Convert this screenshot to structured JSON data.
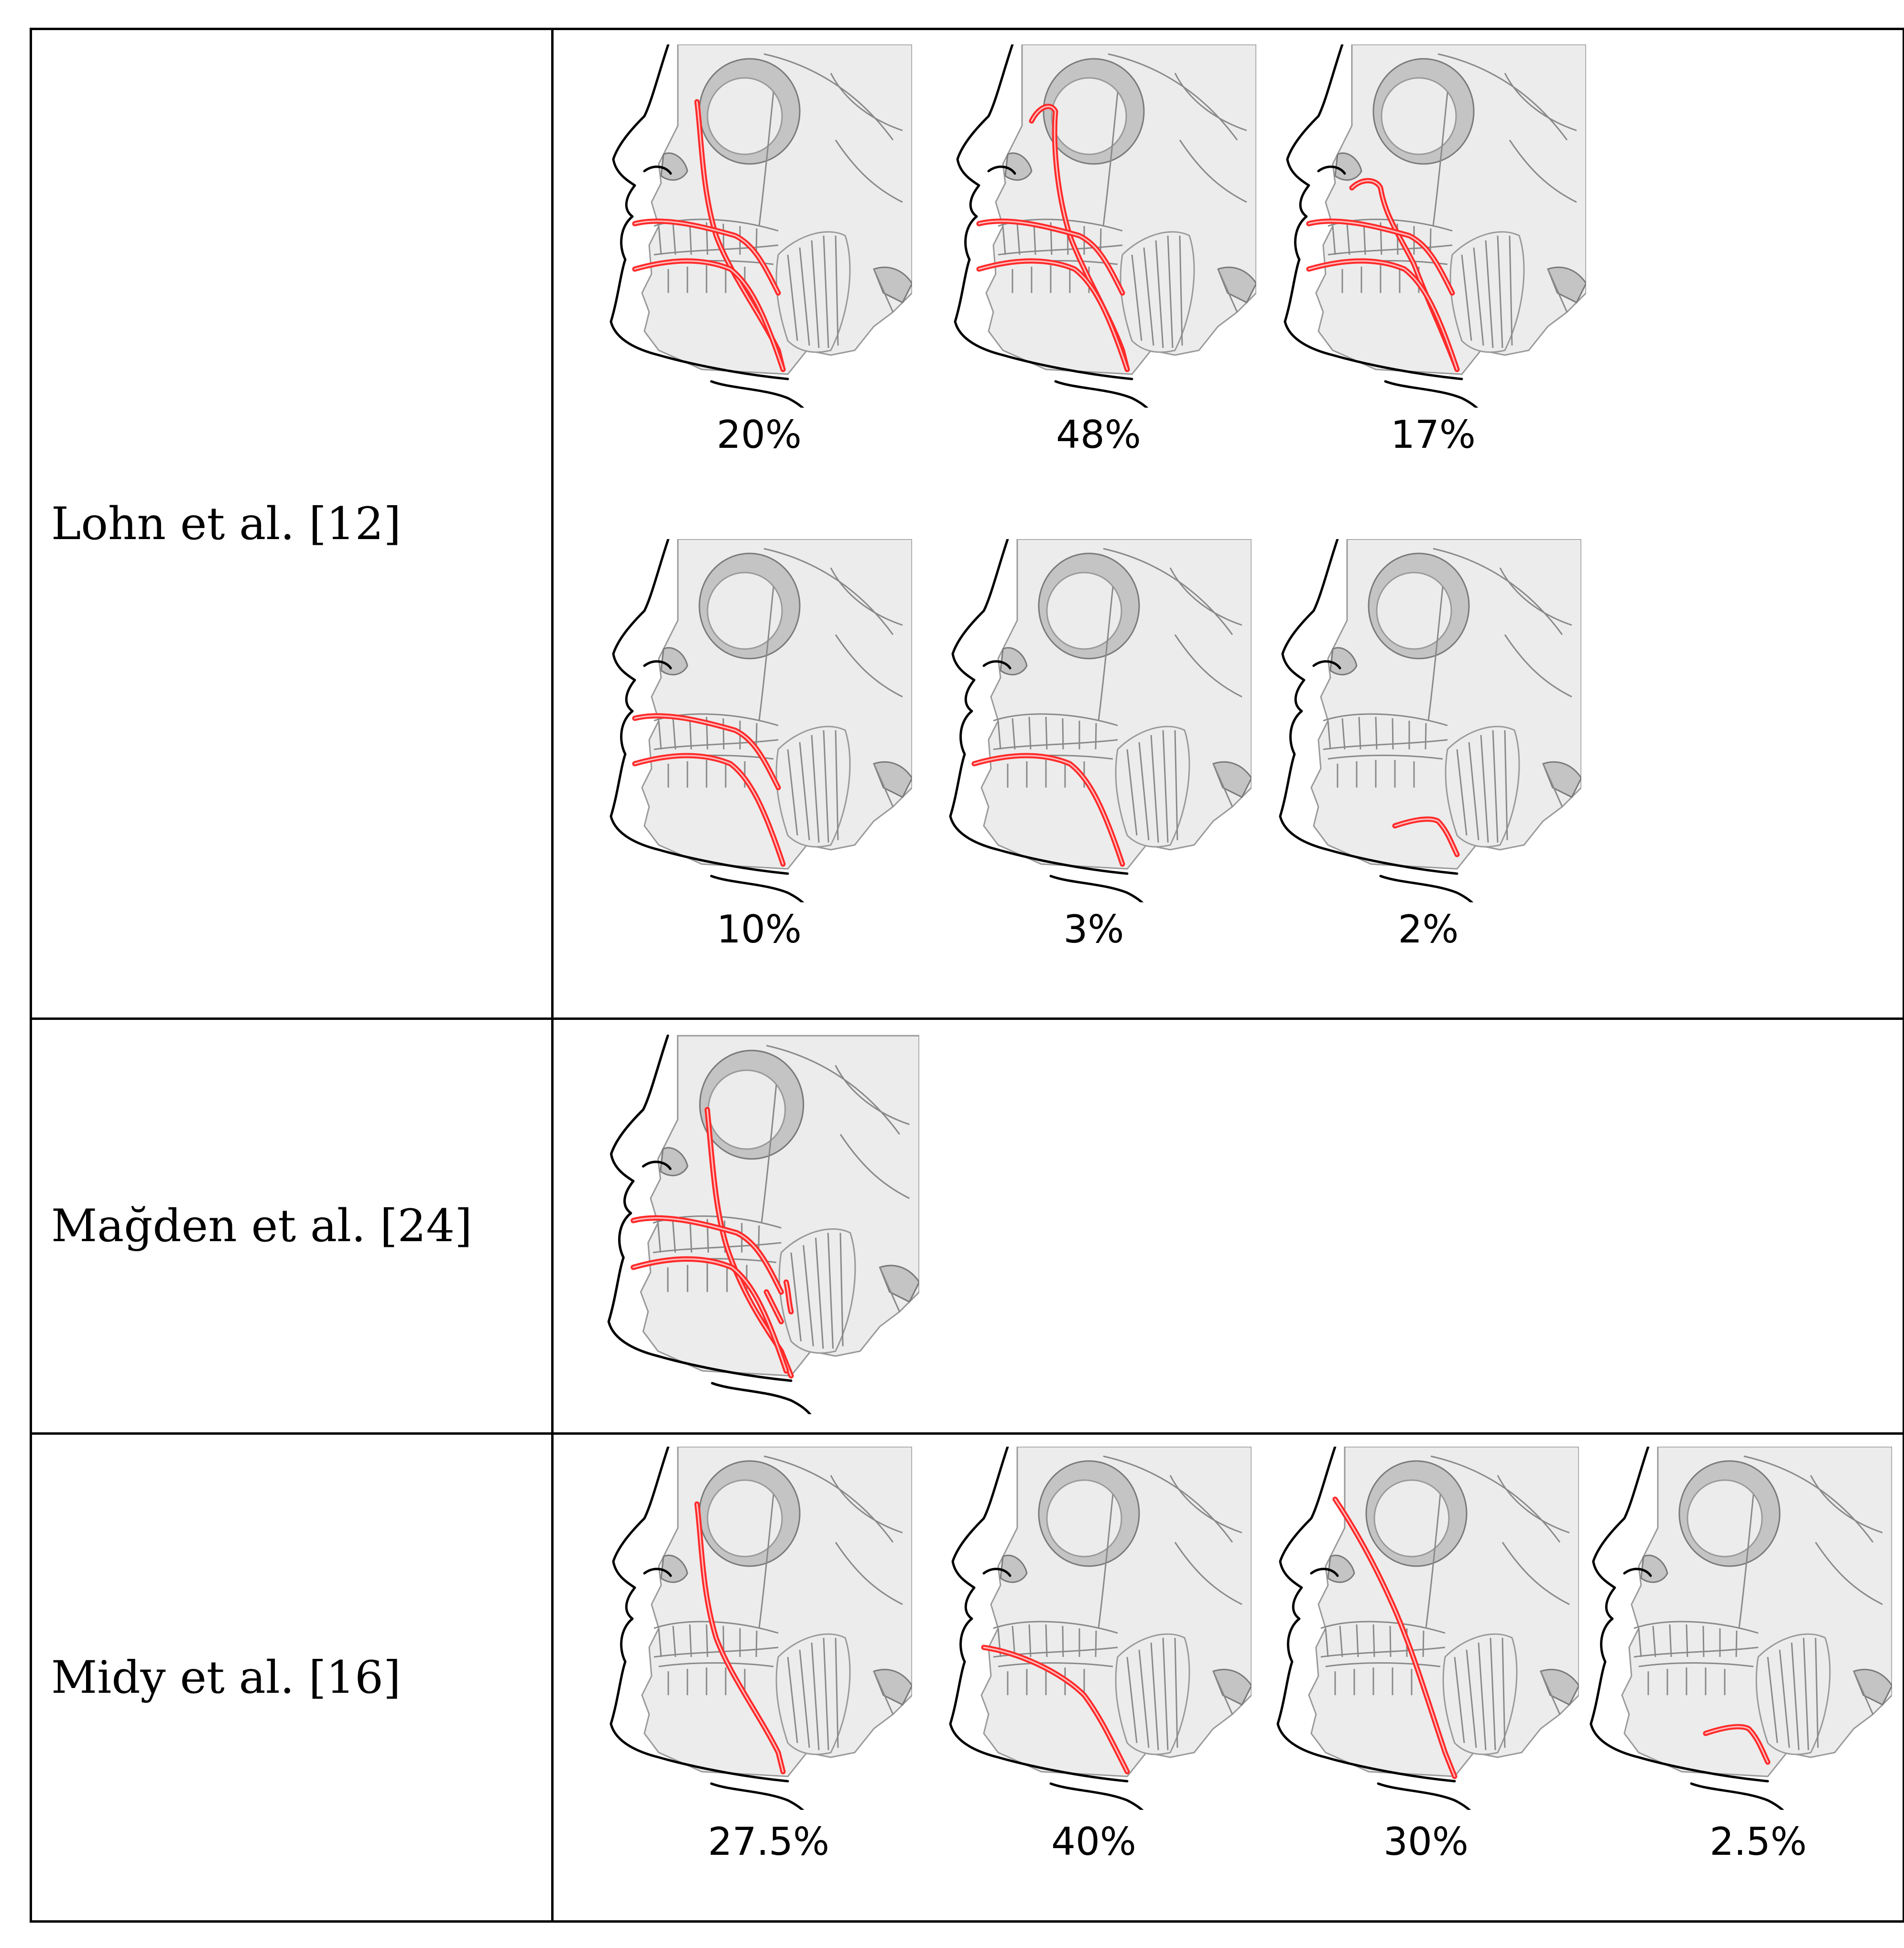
{
  "rows": [
    {
      "label": "Lohn et al. [12]",
      "panels": [
        {
          "percent": "20%",
          "branches": [
            "angular",
            "superior-labial",
            "inferior-labial"
          ]
        },
        {
          "percent": "48%",
          "branches": [
            "angular-lateral",
            "superior-labial",
            "inferior-labial"
          ]
        },
        {
          "percent": "17%",
          "branches": [
            "lateral-nasal",
            "superior-labial",
            "inferior-labial"
          ]
        },
        {
          "percent": "10%",
          "branches": [
            "superior-labial",
            "inferior-labial"
          ]
        },
        {
          "percent": "3%",
          "branches": [
            "inferior-labial"
          ]
        },
        {
          "percent": "2%",
          "branches": [
            "short-trunk"
          ]
        }
      ]
    },
    {
      "label": "Mağden et al. [24]",
      "panels": [
        {
          "percent": "",
          "branches": [
            "angular-double",
            "superior-labial",
            "inferior-labial",
            "masseteric"
          ]
        }
      ]
    },
    {
      "label": "Midy et al. [16]",
      "panels": [
        {
          "percent": "27.5%",
          "branches": [
            "angular"
          ]
        },
        {
          "percent": "40%",
          "branches": [
            "nasolabial-short"
          ]
        },
        {
          "percent": "30%",
          "branches": [
            "lateral-nasal-long"
          ]
        },
        {
          "percent": "2.5%",
          "branches": [
            "short-trunk"
          ]
        }
      ]
    }
  ]
}
